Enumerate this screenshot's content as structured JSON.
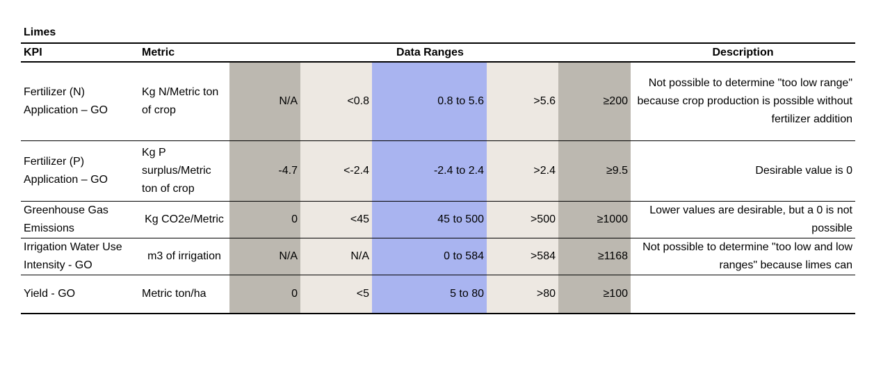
{
  "title": "Limes",
  "table": {
    "header": [
      "KPI",
      "Metric",
      "Data Ranges",
      "Description"
    ],
    "rows": [
      [
        "Fertilizer (N) Application – GO",
        "Kg N/Metric ton of crop",
        "N/A",
        "<0.8",
        "0.8 to 5.6",
        ">5.6",
        "≥200",
        "Not possible to determine \"too low range\" because crop production is possible without fertilizer addition"
      ],
      [
        "Fertilizer (P) Application – GO",
        "Kg P surplus/Metric ton of crop",
        "-4.7",
        "<-2.4",
        "-2.4 to 2.4",
        ">2.4",
        "≥9.5",
        "Desirable value is 0"
      ],
      [
        "Greenhouse Gas Emissions",
        "Kg CO2e/Metric",
        "0",
        "<45",
        "45 to 500",
        ">500",
        "≥1000",
        "Lower values are desirable, but a 0 is not possible"
      ],
      [
        "Irrigation Water Use Intensity - GO",
        "m3 of irrigation",
        "N/A",
        "N/A",
        "0 to 584",
        ">584",
        "≥1168",
        "Not possible to determine \"too low and low ranges\" because limes can"
      ],
      [
        "Yield - GO",
        "Metric ton/ha",
        "0",
        "<5",
        "5  to 80",
        ">80",
        "≥100"
      ]
    ]
  }
}
